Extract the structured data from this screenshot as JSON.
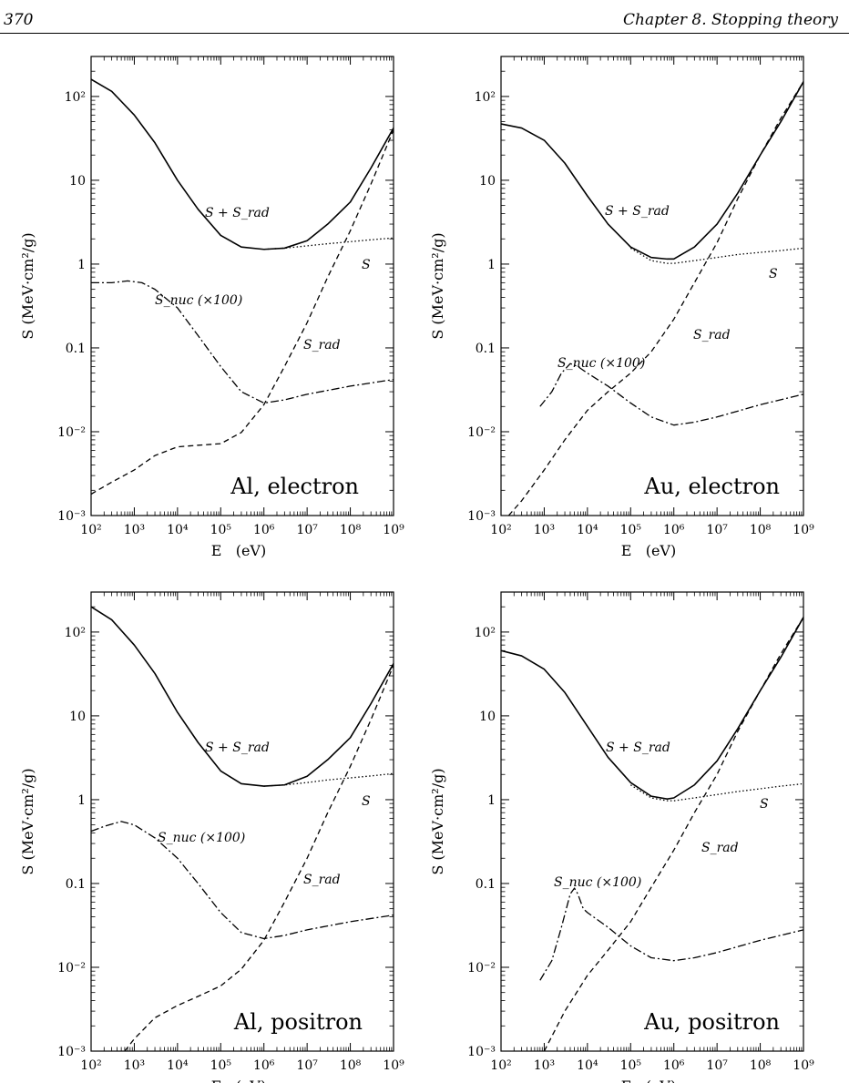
{
  "header": {
    "page_number": "370",
    "chapter_title": "Chapter 8.  Stopping theory"
  },
  "styles": {
    "total": "solid",
    "collision": "dotted",
    "radiative": "dashed",
    "nuclear": "dash-dot",
    "color": "#000000"
  },
  "chart_data": [
    {
      "type": "line",
      "title": "Al, electron",
      "xlabel": "E   (eV)",
      "ylabel": "S  (MeV·cm²/g)",
      "xscale": "log",
      "yscale": "log",
      "xlim": [
        100,
        1000000000
      ],
      "ylim": [
        0.001,
        300
      ],
      "xticklabels": [
        "10²",
        "10³",
        "10⁴",
        "10⁵",
        "10⁶",
        "10⁷",
        "10⁸",
        "10⁹"
      ],
      "yticklabels": [
        "10⁻³",
        "10⁻²",
        "0.1",
        "1",
        "10",
        "10²"
      ],
      "series": [
        {
          "name": "S + S_rad",
          "style": "total",
          "x": [
            100,
            300,
            1000,
            3000,
            10000,
            30000,
            100000,
            300000,
            1000000,
            3000000,
            10000000,
            30000000,
            100000000,
            300000000,
            1000000000
          ],
          "y": [
            160,
            115,
            60,
            28,
            10,
            4.5,
            2.2,
            1.6,
            1.5,
            1.55,
            1.9,
            3,
            5.5,
            14,
            42
          ]
        },
        {
          "name": "S",
          "style": "collision",
          "x": [
            1000000,
            3000000,
            10000000,
            30000000,
            100000000,
            300000000,
            1000000000
          ],
          "y": [
            1.5,
            1.55,
            1.65,
            1.75,
            1.85,
            1.95,
            2.05
          ]
        },
        {
          "name": "S_rad",
          "style": "radiative",
          "x": [
            100,
            300,
            1000,
            3000,
            10000,
            30000,
            100000,
            300000,
            1000000,
            3000000,
            10000000,
            30000000,
            100000000,
            300000000,
            1000000000
          ],
          "y": [
            0.0018,
            0.0025,
            0.0035,
            0.0052,
            0.0066,
            0.0069,
            0.0072,
            0.0098,
            0.021,
            0.06,
            0.2,
            0.7,
            2.5,
            9,
            40
          ]
        },
        {
          "name": "S_nuc (×100)",
          "style": "nuclear",
          "x": [
            100,
            300,
            700,
            1500,
            3000,
            10000,
            30000,
            100000,
            300000,
            1000000,
            3000000,
            10000000,
            100000000,
            1000000000
          ],
          "y": [
            0.6,
            0.6,
            0.63,
            0.6,
            0.5,
            0.3,
            0.14,
            0.06,
            0.03,
            0.022,
            0.024,
            0.028,
            0.035,
            0.042
          ]
        }
      ],
      "annotations": [
        "S + S_rad",
        "S",
        "S_rad",
        "S_nuc (×100)"
      ]
    },
    {
      "type": "line",
      "title": "Au, electron",
      "xlabel": "E   (eV)",
      "ylabel": "S  (MeV·cm²/g)",
      "xscale": "log",
      "yscale": "log",
      "xlim": [
        100,
        1000000000
      ],
      "ylim": [
        0.001,
        300
      ],
      "xticklabels": [
        "10²",
        "10³",
        "10⁴",
        "10⁵",
        "10⁶",
        "10⁷",
        "10⁸",
        "10⁹"
      ],
      "yticklabels": [
        "10⁻³",
        "10⁻²",
        "0.1",
        "1",
        "10",
        "10²"
      ],
      "series": [
        {
          "name": "S + S_rad",
          "style": "total",
          "x": [
            100,
            300,
            1000,
            3000,
            10000,
            30000,
            100000,
            300000,
            700000,
            1000000,
            3000000,
            10000000,
            30000000,
            100000000,
            300000000,
            1000000000
          ],
          "y": [
            47,
            42,
            30,
            16,
            6.5,
            3,
            1.6,
            1.2,
            1.15,
            1.15,
            1.6,
            3,
            7,
            20,
            50,
            150
          ]
        },
        {
          "name": "S",
          "style": "collision",
          "x": [
            100000,
            300000,
            700000,
            1000000,
            3000000,
            10000000,
            30000000,
            100000000,
            300000000,
            1000000000
          ],
          "y": [
            1.55,
            1.1,
            1.02,
            1.02,
            1.1,
            1.2,
            1.3,
            1.38,
            1.45,
            1.55
          ]
        },
        {
          "name": "S_rad",
          "style": "radiative",
          "x": [
            150,
            300,
            1000,
            3000,
            10000,
            30000,
            100000,
            300000,
            1000000,
            3000000,
            10000000,
            30000000,
            100000000,
            300000000,
            1000000000
          ],
          "y": [
            0.001,
            0.0015,
            0.0035,
            0.008,
            0.018,
            0.03,
            0.05,
            0.09,
            0.22,
            0.6,
            1.8,
            6,
            20,
            55,
            150
          ]
        },
        {
          "name": "S_nuc (×100)",
          "style": "nuclear",
          "x": [
            800,
            1500,
            2500,
            4000,
            6000,
            10000,
            30000,
            100000,
            300000,
            1000000,
            3000000,
            10000000,
            100000000,
            1000000000
          ],
          "y": [
            0.02,
            0.03,
            0.05,
            0.065,
            0.06,
            0.05,
            0.035,
            0.022,
            0.015,
            0.012,
            0.013,
            0.015,
            0.021,
            0.028
          ]
        }
      ],
      "annotations": [
        "S + S_rad",
        "S",
        "S_rad",
        "S_nuc (×100)"
      ]
    },
    {
      "type": "line",
      "title": "Al, positron",
      "xlabel": "E   (eV)",
      "ylabel": "S  (MeV·cm²/g)",
      "xscale": "log",
      "yscale": "log",
      "xlim": [
        100,
        1000000000
      ],
      "ylim": [
        0.001,
        300
      ],
      "xticklabels": [
        "10²",
        "10³",
        "10⁴",
        "10⁵",
        "10⁶",
        "10⁷",
        "10⁸",
        "10⁹"
      ],
      "yticklabels": [
        "10⁻³",
        "10⁻²",
        "0.1",
        "1",
        "10",
        "10²"
      ],
      "series": [
        {
          "name": "S + S_rad",
          "style": "total",
          "x": [
            100,
            300,
            1000,
            3000,
            10000,
            30000,
            100000,
            300000,
            1000000,
            3000000,
            10000000,
            30000000,
            100000000,
            300000000,
            1000000000
          ],
          "y": [
            200,
            140,
            70,
            32,
            11,
            4.8,
            2.2,
            1.55,
            1.45,
            1.5,
            1.9,
            3,
            5.5,
            14,
            42
          ]
        },
        {
          "name": "S",
          "style": "collision",
          "x": [
            1000000,
            3000000,
            10000000,
            30000000,
            100000000,
            300000000,
            1000000000
          ],
          "y": [
            1.45,
            1.5,
            1.6,
            1.72,
            1.82,
            1.92,
            2.05
          ]
        },
        {
          "name": "S_rad",
          "style": "radiative",
          "x": [
            600,
            1000,
            3000,
            10000,
            30000,
            100000,
            300000,
            1000000,
            3000000,
            10000000,
            30000000,
            100000000,
            300000000,
            1000000000
          ],
          "y": [
            0.001,
            0.0014,
            0.0025,
            0.0035,
            0.0045,
            0.006,
            0.0095,
            0.021,
            0.06,
            0.2,
            0.7,
            2.5,
            9,
            40
          ]
        },
        {
          "name": "S_nuc (×100)",
          "style": "nuclear",
          "x": [
            100,
            200,
            500,
            1000,
            3000,
            10000,
            30000,
            100000,
            300000,
            1000000,
            3000000,
            10000000,
            100000000,
            1000000000
          ],
          "y": [
            0.42,
            0.48,
            0.55,
            0.5,
            0.35,
            0.2,
            0.1,
            0.045,
            0.026,
            0.022,
            0.024,
            0.028,
            0.035,
            0.042
          ]
        }
      ],
      "annotations": [
        "S + S_rad",
        "S",
        "S_rad",
        "S_nuc (×100)"
      ]
    },
    {
      "type": "line",
      "title": "Au, positron",
      "xlabel": "E   (eV)",
      "ylabel": "S  (MeV·cm²/g)",
      "xscale": "log",
      "yscale": "log",
      "xlim": [
        100,
        1000000000
      ],
      "ylim": [
        0.001,
        300
      ],
      "xticklabels": [
        "10²",
        "10³",
        "10⁴",
        "10⁵",
        "10⁶",
        "10⁷",
        "10⁸",
        "10⁹"
      ],
      "yticklabels": [
        "10⁻³",
        "10⁻²",
        "0.1",
        "1",
        "10",
        "10²"
      ],
      "series": [
        {
          "name": "S + S_rad",
          "style": "total",
          "x": [
            100,
            300,
            1000,
            3000,
            10000,
            30000,
            100000,
            300000,
            700000,
            1000000,
            3000000,
            10000000,
            30000000,
            100000000,
            300000000,
            1000000000
          ],
          "y": [
            60,
            52,
            36,
            19,
            7.5,
            3.2,
            1.6,
            1.1,
            1.02,
            1.05,
            1.5,
            2.9,
            7,
            20,
            50,
            150
          ]
        },
        {
          "name": "S",
          "style": "collision",
          "x": [
            100000,
            300000,
            700000,
            1000000,
            3000000,
            10000000,
            30000000,
            100000000,
            300000000,
            1000000000
          ],
          "y": [
            1.5,
            1.05,
            0.97,
            0.97,
            1.05,
            1.15,
            1.25,
            1.35,
            1.45,
            1.55
          ]
        },
        {
          "name": "S_rad",
          "style": "radiative",
          "x": [
            1000,
            3000,
            10000,
            30000,
            100000,
            300000,
            1000000,
            3000000,
            10000000,
            30000000,
            100000000,
            300000000,
            1000000000
          ],
          "y": [
            0.001,
            0.003,
            0.008,
            0.016,
            0.035,
            0.09,
            0.25,
            0.7,
            2,
            6.5,
            20,
            55,
            150
          ]
        },
        {
          "name": "S_nuc (×100)",
          "style": "nuclear",
          "x": [
            800,
            1500,
            2500,
            4000,
            5000,
            6000,
            8000,
            10000,
            30000,
            100000,
            300000,
            1000000,
            3000000,
            10000000,
            100000000,
            1000000000
          ],
          "y": [
            0.007,
            0.012,
            0.03,
            0.075,
            0.088,
            0.075,
            0.05,
            0.045,
            0.03,
            0.018,
            0.013,
            0.012,
            0.013,
            0.015,
            0.021,
            0.028
          ]
        }
      ],
      "annotations": [
        "S + S_rad",
        "S",
        "S_rad",
        "S_nuc (×100)"
      ]
    }
  ]
}
